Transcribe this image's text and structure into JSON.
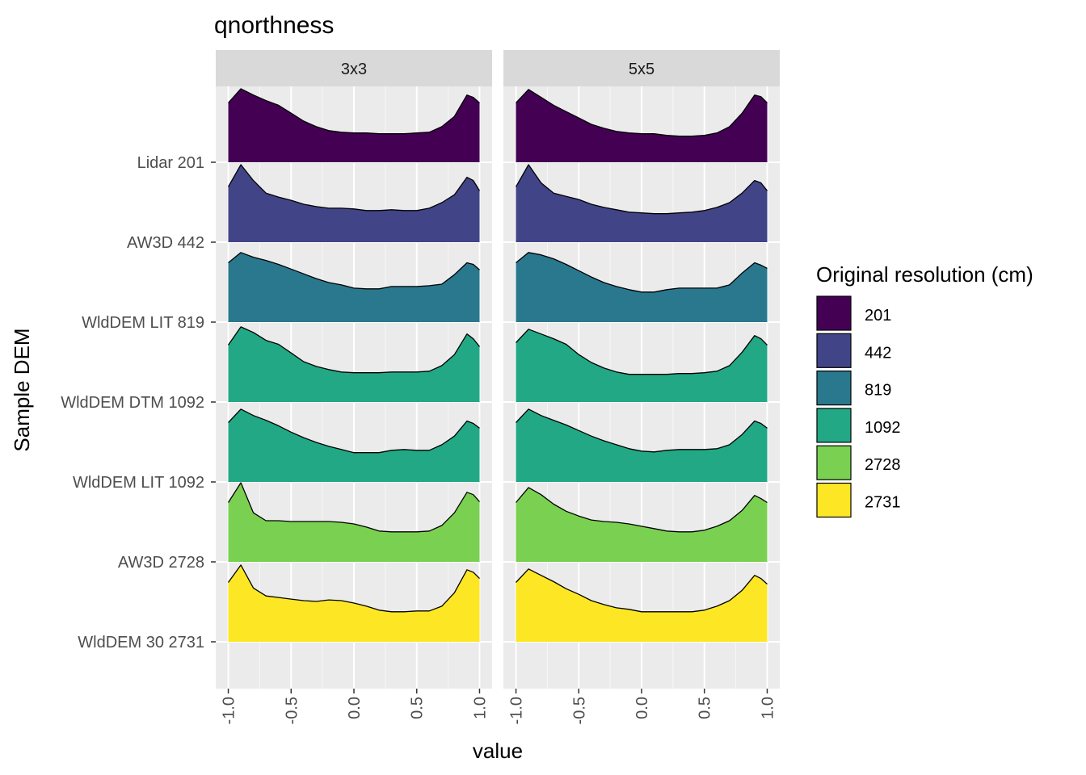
{
  "chart_data": {
    "type": "ridgeline",
    "title": "qnorthness",
    "xlabel": "value",
    "ylabel": "Sample DEM",
    "xlim": [
      -1.1,
      1.1
    ],
    "x_ticks": [
      "-1.0",
      "-0.5",
      "0.0",
      "0.5",
      "1.0"
    ],
    "x_tick_values": [
      -1.0,
      -0.5,
      0.0,
      0.5,
      1.0
    ],
    "facets": [
      "3x3",
      "5x5"
    ],
    "categories": [
      "Lidar 201",
      "AW3D 442",
      "WldDEM LIT 819",
      "WldDEM DTM 1092",
      "WldDEM LIT 1092",
      "AW3D 2728",
      "WldDEM 30 2731"
    ],
    "category_fill": [
      "201",
      "442",
      "819",
      "1092",
      "1092",
      "2728",
      "2731"
    ],
    "grid": true,
    "legend": {
      "title": "Original resolution (cm)",
      "position": "right",
      "entries": [
        {
          "label": "201",
          "color": "#440154"
        },
        {
          "label": "442",
          "color": "#414487"
        },
        {
          "label": "819",
          "color": "#2A788E"
        },
        {
          "label": "1092",
          "color": "#22A884"
        },
        {
          "label": "2728",
          "color": "#7AD151"
        },
        {
          "label": "2731",
          "color": "#FDE725"
        }
      ]
    },
    "density_x": [
      -1.0,
      -0.9,
      -0.8,
      -0.7,
      -0.6,
      -0.5,
      -0.4,
      -0.3,
      -0.2,
      -0.1,
      0.0,
      0.1,
      0.2,
      0.3,
      0.4,
      0.5,
      0.6,
      0.7,
      0.8,
      0.9,
      0.95,
      1.0
    ],
    "panels": [
      {
        "facet": "3x3",
        "series": [
          {
            "category": "Lidar 201",
            "density": [
              0.75,
              0.93,
              0.85,
              0.78,
              0.72,
              0.62,
              0.52,
              0.45,
              0.4,
              0.38,
              0.37,
              0.37,
              0.36,
              0.36,
              0.36,
              0.37,
              0.38,
              0.45,
              0.58,
              0.85,
              0.82,
              0.75
            ]
          },
          {
            "category": "AW3D 442",
            "density": [
              0.7,
              0.98,
              0.78,
              0.62,
              0.57,
              0.53,
              0.48,
              0.45,
              0.43,
              0.43,
              0.42,
              0.4,
              0.4,
              0.41,
              0.4,
              0.4,
              0.43,
              0.5,
              0.6,
              0.82,
              0.78,
              0.65
            ]
          },
          {
            "category": "WldDEM LIT 819",
            "density": [
              0.75,
              0.88,
              0.82,
              0.78,
              0.73,
              0.67,
              0.61,
              0.55,
              0.5,
              0.47,
              0.43,
              0.42,
              0.42,
              0.45,
              0.45,
              0.45,
              0.46,
              0.48,
              0.6,
              0.75,
              0.73,
              0.66
            ]
          },
          {
            "category": "WldDEM DTM 1092",
            "density": [
              0.72,
              0.95,
              0.88,
              0.78,
              0.73,
              0.62,
              0.51,
              0.45,
              0.41,
              0.38,
              0.37,
              0.37,
              0.37,
              0.38,
              0.38,
              0.38,
              0.39,
              0.46,
              0.6,
              0.86,
              0.8,
              0.7
            ]
          },
          {
            "category": "WldDEM LIT 1092",
            "density": [
              0.75,
              0.92,
              0.84,
              0.78,
              0.71,
              0.63,
              0.56,
              0.5,
              0.45,
              0.41,
              0.37,
              0.37,
              0.37,
              0.4,
              0.41,
              0.4,
              0.4,
              0.47,
              0.58,
              0.77,
              0.74,
              0.68
            ]
          },
          {
            "category": "AW3D 2728",
            "density": [
              0.75,
              1.0,
              0.62,
              0.52,
              0.52,
              0.51,
              0.51,
              0.51,
              0.51,
              0.5,
              0.48,
              0.44,
              0.39,
              0.38,
              0.38,
              0.38,
              0.39,
              0.46,
              0.62,
              0.88,
              0.85,
              0.76
            ]
          },
          {
            "category": "WldDEM 30 2731",
            "density": [
              0.75,
              0.97,
              0.68,
              0.58,
              0.56,
              0.54,
              0.52,
              0.51,
              0.53,
              0.52,
              0.49,
              0.45,
              0.4,
              0.38,
              0.38,
              0.39,
              0.39,
              0.45,
              0.62,
              0.91,
              0.88,
              0.8
            ]
          }
        ]
      },
      {
        "facet": "5x5",
        "series": [
          {
            "category": "Lidar 201",
            "density": [
              0.75,
              0.92,
              0.82,
              0.72,
              0.64,
              0.56,
              0.48,
              0.43,
              0.39,
              0.37,
              0.36,
              0.36,
              0.34,
              0.33,
              0.33,
              0.34,
              0.37,
              0.45,
              0.62,
              0.85,
              0.83,
              0.75
            ]
          },
          {
            "category": "AW3D 442",
            "density": [
              0.7,
              0.98,
              0.75,
              0.62,
              0.58,
              0.54,
              0.48,
              0.44,
              0.41,
              0.38,
              0.37,
              0.36,
              0.36,
              0.37,
              0.38,
              0.4,
              0.44,
              0.5,
              0.62,
              0.78,
              0.75,
              0.65
            ]
          },
          {
            "category": "WldDEM LIT 819",
            "density": [
              0.75,
              0.88,
              0.85,
              0.8,
              0.73,
              0.65,
              0.57,
              0.5,
              0.45,
              0.41,
              0.38,
              0.38,
              0.41,
              0.43,
              0.43,
              0.43,
              0.43,
              0.47,
              0.62,
              0.75,
              0.72,
              0.68
            ]
          },
          {
            "category": "WldDEM DTM 1092",
            "density": [
              0.75,
              0.92,
              0.86,
              0.8,
              0.73,
              0.6,
              0.5,
              0.43,
              0.38,
              0.35,
              0.35,
              0.35,
              0.35,
              0.36,
              0.36,
              0.37,
              0.39,
              0.46,
              0.63,
              0.84,
              0.8,
              0.72
            ]
          },
          {
            "category": "WldDEM LIT 1092",
            "density": [
              0.75,
              0.92,
              0.84,
              0.78,
              0.72,
              0.65,
              0.58,
              0.52,
              0.47,
              0.42,
              0.39,
              0.38,
              0.4,
              0.41,
              0.41,
              0.41,
              0.42,
              0.47,
              0.6,
              0.77,
              0.74,
              0.68
            ]
          },
          {
            "category": "AW3D 2728",
            "density": [
              0.75,
              0.94,
              0.85,
              0.73,
              0.64,
              0.58,
              0.53,
              0.51,
              0.5,
              0.48,
              0.45,
              0.42,
              0.39,
              0.38,
              0.38,
              0.4,
              0.45,
              0.52,
              0.65,
              0.84,
              0.8,
              0.75
            ]
          },
          {
            "category": "WldDEM 30 2731",
            "density": [
              0.75,
              0.92,
              0.84,
              0.76,
              0.67,
              0.6,
              0.52,
              0.47,
              0.43,
              0.41,
              0.38,
              0.38,
              0.38,
              0.38,
              0.38,
              0.4,
              0.45,
              0.52,
              0.65,
              0.84,
              0.8,
              0.73
            ]
          }
        ]
      }
    ]
  }
}
